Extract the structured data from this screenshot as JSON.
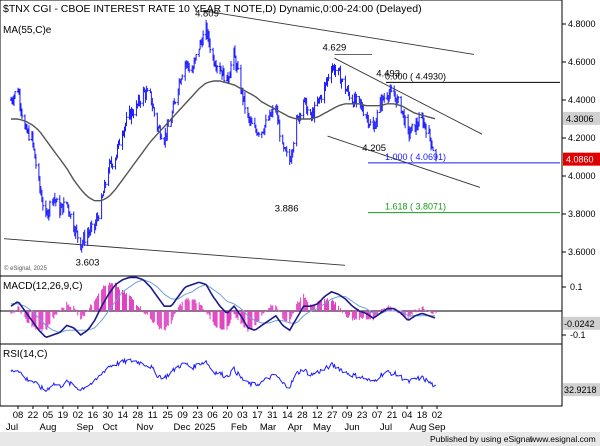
{
  "header": {
    "title": "$TNX CGI - CBOE INTEREST RATE 10 YEAR T NOTE,D) Dynamic,0:00-24:00 (Delayed)"
  },
  "price_panel": {
    "ma_label": "MA(55,C)e",
    "watermark": "© eSignal, 2025",
    "y_ticks": [
      "4.8000",
      "4.6000",
      "4.4000",
      "4.2000",
      "4.0000",
      "3.8000",
      "3.6000"
    ],
    "last_ma": "4.3006",
    "last_price": "4.0860",
    "annotations": [
      "4.809",
      "4.629",
      "4.493",
      "4.205",
      "3.886",
      "3.603"
    ],
    "fib_levels": [
      {
        "label": "0.000 ( 4.4930)",
        "value": 4.493,
        "color": "#000000"
      },
      {
        "label": "1.000 ( 4.0691)",
        "value": 4.0691,
        "color": "#1a1aff"
      },
      {
        "label": "1.618 ( 3.8071)",
        "value": 3.8071,
        "color": "#1a9a1a"
      }
    ]
  },
  "macd_panel": {
    "label": "MACD(12,26,9,C)",
    "y_ticks": [
      "0.1",
      "-0.1"
    ],
    "last_value": "-0.0242"
  },
  "rsi_panel": {
    "label": "RSI(14,C)",
    "last_value": "32.9218"
  },
  "x_axis": {
    "day_labels": [
      "08",
      "22",
      "05",
      "19",
      "02",
      "16",
      "30",
      "14",
      "28",
      "11",
      "25",
      "09",
      "23",
      "06",
      "20",
      "03",
      "17",
      "31",
      "14",
      "28",
      "12",
      "27",
      "09",
      "23",
      "07",
      "21",
      "04",
      "18",
      "02"
    ],
    "month_labels": [
      "Jul",
      "Aug",
      "Sep",
      "Oct",
      "Nov",
      "Dec",
      "2025",
      "Feb",
      "Mar",
      "Apr",
      "May",
      "Jun",
      "Jul",
      "Aug",
      "Sep"
    ]
  },
  "footer": {
    "text": "Published by using eSignal",
    "site": "www.esignal.com"
  },
  "colors": {
    "price_bar": "#1a1aff",
    "ma_line": "#555555",
    "channel": "#333333",
    "macd_line": "#1a1a8a",
    "signal_line": "#6e9fdc",
    "histogram": "#e040c0",
    "rsi_line": "#1a1aff",
    "last_price_tag": "#e00000"
  },
  "chart_data": [
    {
      "type": "line",
      "title": "$TNX CGI - CBOE INTEREST RATE 10 YEAR T NOTE,D) Dynamic,0:00-24:00 (Delayed)",
      "description_series": "daily closes (approximate, OHLC bars drawn around them)",
      "x": [
        "2024-07-01",
        "2024-07-08",
        "2024-07-15",
        "2024-07-22",
        "2024-07-29",
        "2024-08-05",
        "2024-08-12",
        "2024-08-19",
        "2024-08-26",
        "2024-09-02",
        "2024-09-09",
        "2024-09-16",
        "2024-09-23",
        "2024-09-30",
        "2024-10-07",
        "2024-10-14",
        "2024-10-21",
        "2024-10-28",
        "2024-11-04",
        "2024-11-11",
        "2024-11-18",
        "2024-11-25",
        "2024-12-02",
        "2024-12-09",
        "2024-12-16",
        "2024-12-23",
        "2024-12-30",
        "2025-01-06",
        "2025-01-13",
        "2025-01-20",
        "2025-01-27",
        "2025-02-03",
        "2025-02-10",
        "2025-02-17",
        "2025-02-24",
        "2025-03-03",
        "2025-03-10",
        "2025-03-17",
        "2025-03-24",
        "2025-03-31",
        "2025-04-07",
        "2025-04-14",
        "2025-04-21",
        "2025-04-28",
        "2025-05-05",
        "2025-05-12",
        "2025-05-19",
        "2025-05-26",
        "2025-06-02",
        "2025-06-09",
        "2025-06-16",
        "2025-06-23",
        "2025-06-30",
        "2025-07-07",
        "2025-07-14",
        "2025-07-21",
        "2025-07-28",
        "2025-08-04",
        "2025-08-11",
        "2025-08-18",
        "2025-08-25",
        "2025-09-01"
      ],
      "series": [
        {
          "name": "Price",
          "values": [
            4.4,
            4.46,
            4.24,
            4.2,
            3.96,
            3.78,
            3.9,
            3.82,
            3.86,
            3.74,
            3.64,
            3.7,
            3.73,
            3.86,
            4.04,
            4.1,
            4.24,
            4.32,
            4.36,
            4.44,
            4.42,
            4.26,
            4.2,
            4.3,
            4.48,
            4.6,
            4.55,
            4.68,
            4.77,
            4.62,
            4.57,
            4.5,
            4.64,
            4.46,
            4.3,
            4.24,
            4.24,
            4.3,
            4.36,
            4.14,
            4.08,
            4.28,
            4.4,
            4.3,
            4.38,
            4.46,
            4.58,
            4.54,
            4.46,
            4.4,
            4.38,
            4.32,
            4.24,
            4.38,
            4.44,
            4.42,
            4.36,
            4.22,
            4.26,
            4.3,
            4.22,
            4.09
          ]
        },
        {
          "name": "MA(55,C)e",
          "values": [
            4.3,
            4.3,
            4.29,
            4.27,
            4.24,
            4.19,
            4.14,
            4.09,
            4.04,
            3.98,
            3.93,
            3.89,
            3.87,
            3.87,
            3.89,
            3.93,
            3.98,
            4.03,
            4.08,
            4.13,
            4.18,
            4.22,
            4.26,
            4.3,
            4.34,
            4.38,
            4.42,
            4.46,
            4.49,
            4.5,
            4.5,
            4.49,
            4.48,
            4.46,
            4.44,
            4.42,
            4.39,
            4.37,
            4.35,
            4.33,
            4.31,
            4.3,
            4.3,
            4.3,
            4.31,
            4.33,
            4.35,
            4.37,
            4.38,
            4.38,
            4.38,
            4.37,
            4.37,
            4.37,
            4.38,
            4.38,
            4.37,
            4.35,
            4.33,
            4.32,
            4.31,
            4.3
          ]
        }
      ],
      "annotations": [
        {
          "text": "4.809",
          "x": "2025-01-14",
          "y": 4.809
        },
        {
          "text": "4.629",
          "x": "2025-05-22",
          "y": 4.629
        },
        {
          "text": "4.493",
          "x": "2025-07-15",
          "y": 4.493
        },
        {
          "text": "4.205",
          "x": "2025-07-01",
          "y": 4.205
        },
        {
          "text": "3.886",
          "x": "2025-04-04",
          "y": 3.886
        },
        {
          "text": "3.603",
          "x": "2024-09-16",
          "y": 3.603
        }
      ],
      "fibonacci": [
        {
          "label": "0.000 ( 4.4930)",
          "value": 4.493
        },
        {
          "label": "1.000 ( 4.0691)",
          "value": 4.0691
        },
        {
          "label": "1.618 ( 3.8071)",
          "value": 3.8071
        }
      ],
      "ylim": [
        3.5,
        4.9
      ],
      "grid": false,
      "last_values": {
        "price": 4.086,
        "ma": 4.3006
      }
    },
    {
      "type": "line",
      "title": "MACD(12,26,9,C)",
      "x_ref": "same weekly dates as price panel",
      "series": [
        {
          "name": "MACD",
          "values": [
            0.02,
            0.04,
            0.0,
            -0.04,
            -0.08,
            -0.11,
            -0.1,
            -0.09,
            -0.06,
            -0.07,
            -0.1,
            -0.08,
            -0.04,
            0.02,
            0.07,
            0.11,
            0.13,
            0.14,
            0.14,
            0.13,
            0.1,
            0.06,
            0.02,
            0.02,
            0.06,
            0.1,
            0.11,
            0.12,
            0.11,
            0.06,
            0.02,
            -0.01,
            0.02,
            -0.02,
            -0.07,
            -0.08,
            -0.06,
            -0.04,
            -0.02,
            -0.06,
            -0.08,
            -0.03,
            0.02,
            0.02,
            0.03,
            0.06,
            0.08,
            0.07,
            0.05,
            0.02,
            0.0,
            -0.01,
            -0.03,
            -0.01,
            0.01,
            0.01,
            -0.01,
            -0.04,
            -0.02,
            -0.01,
            -0.02,
            -0.03
          ]
        },
        {
          "name": "Signal",
          "values": [
            0.03,
            0.03,
            0.02,
            0.0,
            -0.03,
            -0.06,
            -0.08,
            -0.09,
            -0.08,
            -0.08,
            -0.08,
            -0.08,
            -0.07,
            -0.04,
            0.0,
            0.04,
            0.08,
            0.1,
            0.12,
            0.13,
            0.12,
            0.1,
            0.07,
            0.05,
            0.05,
            0.07,
            0.08,
            0.1,
            0.11,
            0.09,
            0.07,
            0.04,
            0.03,
            0.01,
            -0.02,
            -0.04,
            -0.05,
            -0.05,
            -0.04,
            -0.04,
            -0.05,
            -0.05,
            -0.02,
            0.0,
            0.01,
            0.03,
            0.05,
            0.06,
            0.06,
            0.04,
            0.02,
            0.01,
            -0.01,
            -0.01,
            0.0,
            0.0,
            0.0,
            -0.02,
            -0.02,
            -0.02,
            -0.02,
            -0.02
          ]
        }
      ],
      "last_value": -0.0242,
      "ylim": [
        -0.15,
        0.15
      ]
    },
    {
      "type": "line",
      "title": "RSI(14,C)",
      "x_ref": "same weekly dates as price panel",
      "series": [
        {
          "name": "RSI",
          "values": [
            55,
            58,
            45,
            42,
            34,
            28,
            38,
            34,
            40,
            35,
            30,
            36,
            40,
            52,
            62,
            65,
            68,
            70,
            69,
            66,
            62,
            50,
            46,
            54,
            62,
            66,
            60,
            66,
            69,
            55,
            52,
            48,
            58,
            46,
            38,
            36,
            40,
            46,
            50,
            38,
            34,
            52,
            58,
            50,
            54,
            58,
            64,
            60,
            54,
            50,
            48,
            44,
            40,
            50,
            54,
            52,
            47,
            40,
            44,
            46,
            40,
            33
          ]
        }
      ],
      "last_value": 32.9218,
      "ylim": [
        15,
        85
      ]
    }
  ]
}
